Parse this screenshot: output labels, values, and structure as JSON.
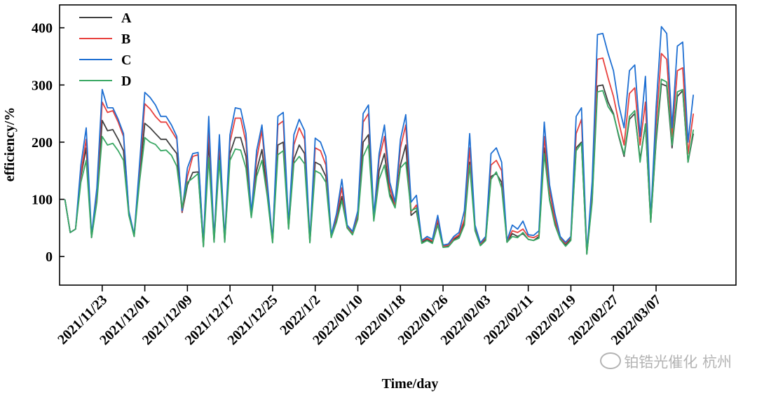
{
  "chart_data": {
    "type": "line",
    "xlabel": "Time/day",
    "ylabel": "efficiency/%",
    "ylim": [
      -50,
      440
    ],
    "yticks": [
      0,
      100,
      200,
      300,
      400
    ],
    "xticks": [
      "2021/11/23",
      "2021/12/01",
      "2021/12/09",
      "2021/12/17",
      "2021/12/25",
      "2022/1/2",
      "2022/01/10",
      "2022/01/18",
      "2022/01/26",
      "2022/02/03",
      "2022/02/11",
      "2022/02/19",
      "2022/02/27",
      "2022/03/07"
    ],
    "xtick_day_index": [
      8,
      16,
      24,
      32,
      40,
      48,
      56,
      64,
      72,
      80,
      88,
      96,
      104,
      112
    ],
    "x_range": [
      0,
      127
    ],
    "x_start_day_index": 1,
    "legend_position": "top-left",
    "grid": false,
    "series": [
      {
        "name": "A",
        "color": "#404040",
        "values": [
          100,
          42,
          48,
          140,
          190,
          33,
          100,
          238,
          220,
          222,
          205,
          185,
          75,
          35,
          140,
          233,
          225,
          215,
          205,
          205,
          192,
          180,
          77,
          125,
          147,
          148,
          18,
          200,
          26,
          180,
          26,
          180,
          208,
          208,
          175,
          70,
          150,
          187,
          110,
          25,
          195,
          200,
          50,
          170,
          195,
          180,
          25,
          165,
          160,
          140,
          35,
          65,
          105,
          50,
          40,
          70,
          200,
          213,
          65,
          150,
          180,
          110,
          88,
          160,
          195,
          72,
          80,
          25,
          30,
          25,
          60,
          17,
          18,
          30,
          35,
          60,
          165,
          50,
          20,
          30,
          140,
          145,
          130,
          25,
          40,
          35,
          40,
          30,
          28,
          35,
          190,
          100,
          60,
          30,
          20,
          30,
          190,
          200,
          5,
          100,
          298,
          300,
          270,
          250,
          210,
          175,
          240,
          250,
          170,
          230,
          60,
          200,
          302,
          298,
          190,
          280,
          290,
          165,
          215
        ]
      },
      {
        "name": "B",
        "color": "#e8413e",
        "values": [
          100,
          42,
          48,
          145,
          205,
          35,
          110,
          270,
          252,
          255,
          235,
          210,
          78,
          37,
          150,
          267,
          258,
          245,
          235,
          235,
          220,
          205,
          78,
          140,
          175,
          178,
          20,
          225,
          28,
          200,
          28,
          200,
          242,
          242,
          200,
          73,
          170,
          220,
          120,
          27,
          230,
          237,
          52,
          195,
          225,
          205,
          27,
          190,
          185,
          160,
          37,
          70,
          120,
          52,
          42,
          75,
          235,
          250,
          68,
          170,
          210,
          120,
          90,
          190,
          230,
          78,
          90,
          27,
          32,
          27,
          65,
          18,
          20,
          32,
          38,
          65,
          190,
          52,
          22,
          33,
          160,
          168,
          150,
          27,
          45,
          42,
          48,
          35,
          33,
          38,
          210,
          115,
          65,
          33,
          23,
          33,
          215,
          240,
          5,
          110,
          345,
          347,
          312,
          280,
          235,
          195,
          285,
          295,
          195,
          270,
          63,
          230,
          355,
          345,
          210,
          325,
          330,
          180,
          250
        ]
      },
      {
        "name": "C",
        "color": "#1e6fd2",
        "values": [
          100,
          42,
          48,
          160,
          225,
          37,
          120,
          292,
          260,
          260,
          240,
          215,
          80,
          38,
          160,
          287,
          278,
          265,
          245,
          245,
          230,
          210,
          80,
          155,
          180,
          182,
          22,
          245,
          30,
          213,
          30,
          213,
          260,
          258,
          215,
          75,
          185,
          230,
          130,
          28,
          245,
          252,
          55,
          213,
          240,
          220,
          28,
          207,
          200,
          175,
          38,
          75,
          135,
          55,
          44,
          80,
          250,
          265,
          70,
          180,
          230,
          130,
          95,
          205,
          248,
          95,
          107,
          28,
          35,
          30,
          72,
          20,
          22,
          35,
          42,
          80,
          215,
          55,
          24,
          35,
          180,
          190,
          165,
          28,
          55,
          48,
          62,
          38,
          37,
          45,
          235,
          125,
          75,
          35,
          25,
          35,
          245,
          260,
          6,
          130,
          388,
          390,
          355,
          325,
          265,
          225,
          325,
          335,
          210,
          315,
          65,
          260,
          402,
          390,
          225,
          368,
          375,
          200,
          283
        ]
      },
      {
        "name": "D",
        "color": "#3aa864",
        "values": [
          100,
          42,
          48,
          130,
          168,
          33,
          95,
          210,
          195,
          198,
          185,
          168,
          72,
          35,
          130,
          208,
          200,
          196,
          185,
          186,
          177,
          158,
          85,
          130,
          137,
          145,
          17,
          173,
          25,
          168,
          25,
          168,
          188,
          186,
          155,
          68,
          140,
          168,
          105,
          24,
          178,
          185,
          48,
          163,
          175,
          162,
          24,
          150,
          145,
          130,
          33,
          60,
          98,
          50,
          38,
          65,
          175,
          195,
          62,
          135,
          160,
          105,
          85,
          155,
          165,
          80,
          85,
          23,
          28,
          23,
          55,
          16,
          17,
          28,
          32,
          55,
          160,
          45,
          19,
          28,
          135,
          148,
          120,
          25,
          35,
          33,
          42,
          30,
          28,
          32,
          180,
          98,
          55,
          30,
          18,
          28,
          185,
          198,
          4,
          95,
          288,
          290,
          262,
          248,
          212,
          178,
          245,
          255,
          165,
          232,
          60,
          205,
          310,
          305,
          195,
          288,
          292,
          165,
          222
        ]
      }
    ]
  },
  "watermark": {
    "text": "铂锆光催化 杭州"
  }
}
